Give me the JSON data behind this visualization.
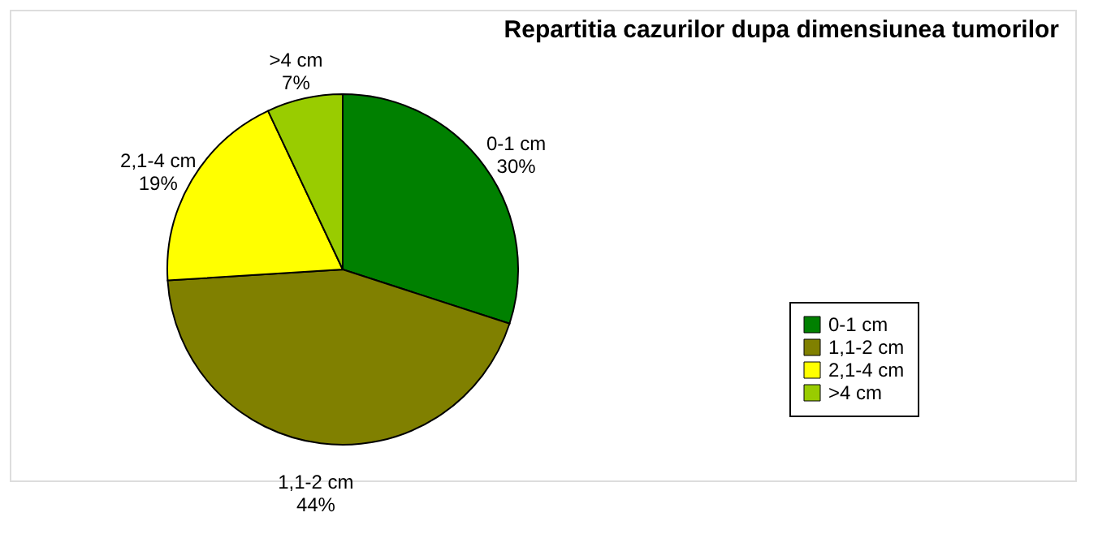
{
  "chart_data": {
    "type": "pie",
    "title": "Repartitia cazurilor dupa dimensiunea tumorilor",
    "categories": [
      "0-1 cm",
      "1,1-2 cm",
      "2,1-4 cm",
      ">4 cm"
    ],
    "values": [
      30,
      44,
      19,
      7
    ],
    "value_labels": [
      "30%",
      "44%",
      "19%",
      "7%"
    ],
    "colors": [
      "#008000",
      "#808000",
      "#ffff00",
      "#99cc00"
    ],
    "legend": "right"
  }
}
